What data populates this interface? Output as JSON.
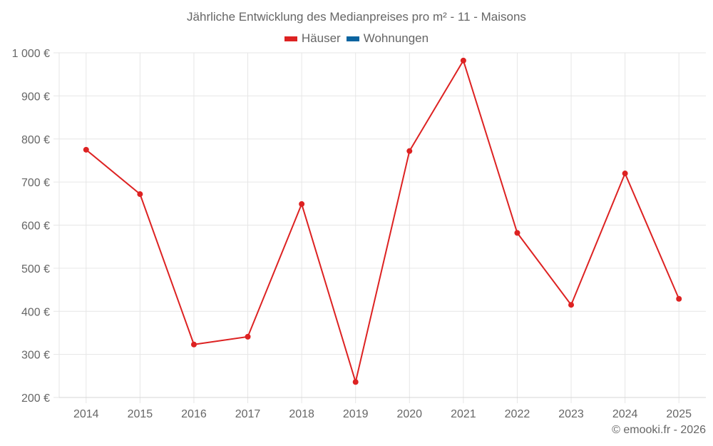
{
  "title": "Jährliche Entwicklung des Medianpreises pro m² - 11 - Maisons",
  "legend": [
    {
      "label": "Häuser",
      "color": "#dd2222"
    },
    {
      "label": "Wohnungen",
      "color": "#0b64a0"
    }
  ],
  "credit": "© emooki.fr - 2026",
  "chart_data": {
    "type": "line",
    "title": "Jährliche Entwicklung des Medianpreises pro m² - 11 - Maisons",
    "xlabel": "",
    "ylabel": "",
    "categories": [
      "2014",
      "2015",
      "2016",
      "2017",
      "2018",
      "2019",
      "2020",
      "2021",
      "2022",
      "2023",
      "2024",
      "2025"
    ],
    "series": [
      {
        "name": "Häuser",
        "color": "#dd2222",
        "values": [
          775,
          672,
          323,
          341,
          649,
          236,
          772,
          982,
          582,
          415,
          720,
          429
        ]
      },
      {
        "name": "Wohnungen",
        "color": "#0b64a0",
        "values": []
      }
    ],
    "ylim": [
      200,
      1000
    ],
    "yticks": [
      200,
      300,
      400,
      500,
      600,
      700,
      800,
      900,
      1000
    ],
    "ytick_labels": [
      "200 €",
      "300 €",
      "400 €",
      "500 €",
      "600 €",
      "700 €",
      "800 €",
      "900 €",
      "1 000 €"
    ],
    "grid": true,
    "legend_position": "top"
  }
}
